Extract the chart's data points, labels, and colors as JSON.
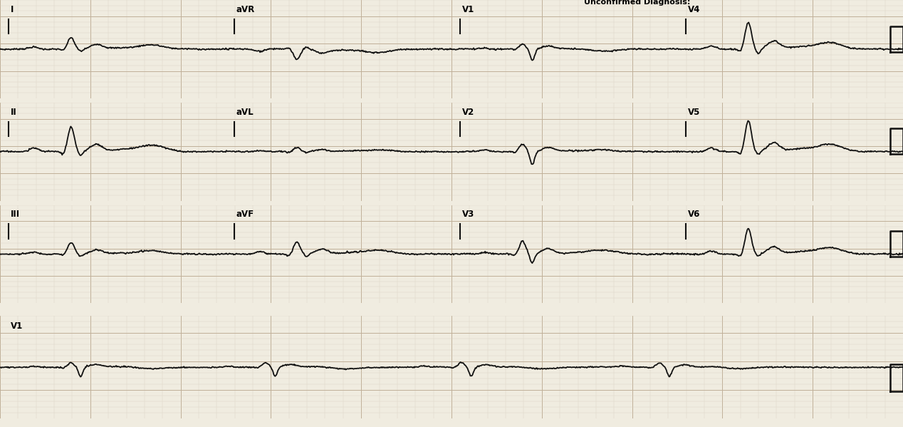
{
  "title": "Unconfirmed Diagnosis:",
  "bg_color": "#f0ece0",
  "minor_grid_color": "#d8cfc0",
  "major_grid_color": "#c0b098",
  "ecg_color": "#111111",
  "text_color": "#000000",
  "figsize": [
    12.68,
    5.99
  ],
  "dpi": 100,
  "row_labels": [
    [
      "I",
      "aVR",
      "V1",
      "V4"
    ],
    [
      "II",
      "aVL",
      "V2",
      "V5"
    ],
    [
      "III",
      "aVF",
      "V3",
      "V6"
    ],
    [
      "V1"
    ]
  ],
  "lead_cfgs": {
    "I": {
      "p": 0.05,
      "r": 0.28,
      "q": -0.04,
      "s": -0.05,
      "j": 0.12,
      "t": 0.1,
      "inv": 1
    },
    "II": {
      "p": 0.09,
      "r": 0.6,
      "q": -0.07,
      "s": -0.1,
      "j": 0.18,
      "t": 0.16,
      "inv": 1
    },
    "III": {
      "p": 0.04,
      "r": 0.28,
      "q": -0.03,
      "s": -0.05,
      "j": 0.1,
      "t": 0.08,
      "inv": 1
    },
    "aVR": {
      "p": 0.05,
      "r": 0.25,
      "q": -0.04,
      "s": -0.05,
      "j": 0.1,
      "t": 0.08,
      "inv": -1
    },
    "aVL": {
      "p": 0.02,
      "r": 0.1,
      "q": -0.02,
      "s": -0.03,
      "j": 0.05,
      "t": 0.04,
      "inv": 1
    },
    "aVF": {
      "p": 0.06,
      "r": 0.3,
      "q": -0.04,
      "s": -0.06,
      "j": 0.12,
      "t": 0.1,
      "inv": 1
    },
    "V1": {
      "p": 0.03,
      "r": 0.12,
      "q": -0.02,
      "s": -0.28,
      "j": 0.07,
      "t": -0.05,
      "inv": 1
    },
    "V2": {
      "p": 0.04,
      "r": 0.18,
      "q": -0.03,
      "s": -0.32,
      "j": 0.1,
      "t": 0.04,
      "inv": 1
    },
    "V3": {
      "p": 0.05,
      "r": 0.32,
      "q": -0.04,
      "s": -0.22,
      "j": 0.13,
      "t": 0.1,
      "inv": 1
    },
    "V4": {
      "p": 0.07,
      "r": 0.65,
      "q": -0.06,
      "s": -0.12,
      "j": 0.2,
      "t": 0.16,
      "inv": 1
    },
    "V5": {
      "p": 0.08,
      "r": 0.75,
      "q": -0.07,
      "s": -0.08,
      "j": 0.22,
      "t": 0.18,
      "inv": 1
    },
    "V6": {
      "p": 0.07,
      "r": 0.62,
      "q": -0.06,
      "s": -0.06,
      "j": 0.18,
      "t": 0.16,
      "inv": 1
    },
    "V1_long": {
      "p": 0.03,
      "r": 0.12,
      "q": -0.02,
      "s": -0.25,
      "j": 0.07,
      "t": -0.04,
      "inv": 1
    }
  }
}
